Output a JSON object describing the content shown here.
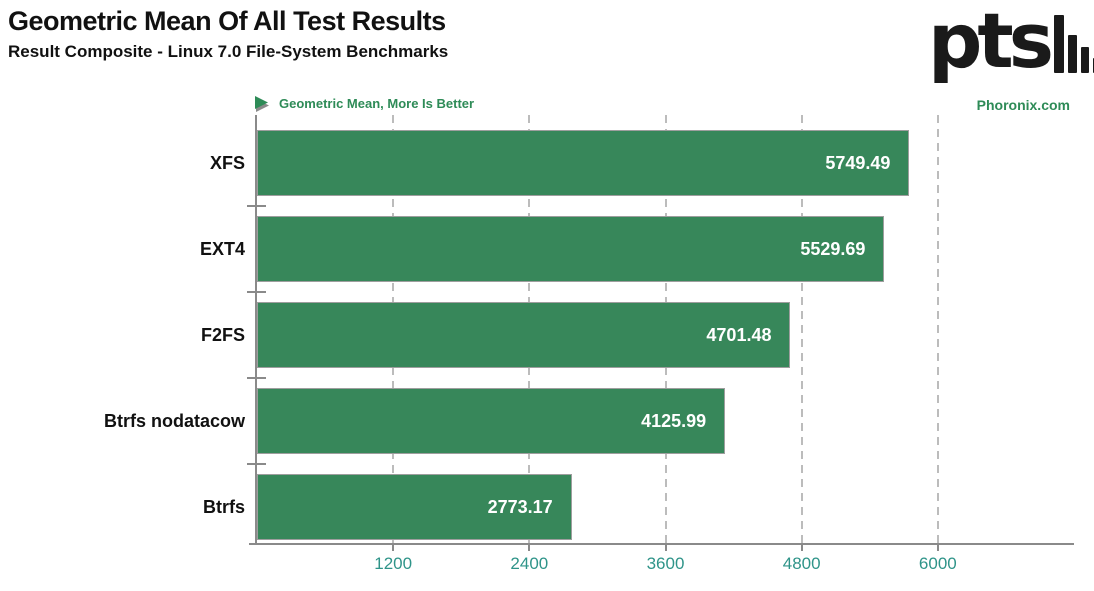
{
  "header": {
    "title": "Geometric Mean Of All Test Results",
    "subtitle": "Result Composite - Linux 7.0 File-System Benchmarks"
  },
  "branding": {
    "logo_text": "pts",
    "logo_icon": "descending-bar-chart-icon",
    "site": "Phoronix.com"
  },
  "legend": {
    "arrow_icon": "right-triangle-icon",
    "label": "Geometric Mean, More Is Better"
  },
  "colors": {
    "bar_fill": "#37875a",
    "bar_border": "#9e9e9e",
    "axis_line": "#8a8a8a",
    "gridline": "#bcbcbc",
    "tick_label": "#2f9489",
    "accent_green": "#2e8b57",
    "value_label": "#ffffff",
    "text": "#111111"
  },
  "chart_data": {
    "type": "bar",
    "orientation": "horizontal",
    "title": "Geometric Mean Of All Test Results",
    "subtitle": "Result Composite - Linux 7.0 File-System Benchmarks",
    "legend": "Geometric Mean, More Is Better",
    "more_is_better": true,
    "categories": [
      "XFS",
      "EXT4",
      "F2FS",
      "Btrfs nodatacow",
      "Btrfs"
    ],
    "values": [
      5749.49,
      5529.69,
      4701.48,
      4125.99,
      2773.17
    ],
    "xlim": [
      0,
      7200
    ],
    "xticks": [
      1200,
      2400,
      3600,
      4800,
      6000
    ],
    "grid": "vertical-dashed"
  }
}
